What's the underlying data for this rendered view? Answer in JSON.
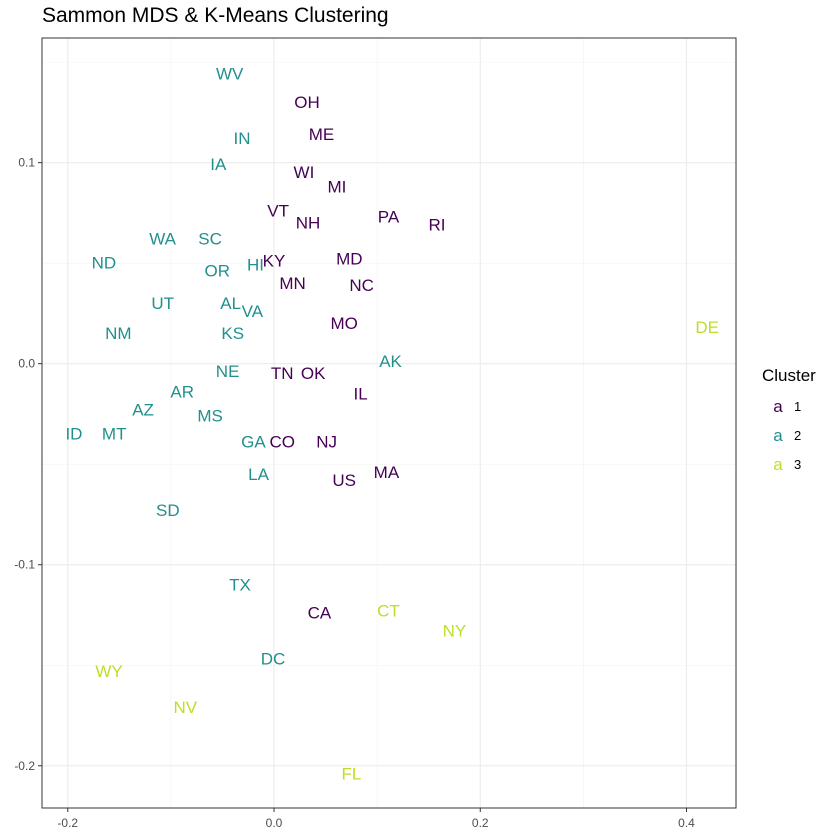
{
  "chart_data": {
    "type": "scatter",
    "title": "Sammon MDS & K-Means Clustering",
    "xlabel": "",
    "ylabel": "",
    "xlim": [
      -0.225,
      0.448
    ],
    "ylim": [
      -0.221,
      0.162
    ],
    "x_ticks": [
      -0.2,
      0.0,
      0.2,
      0.4
    ],
    "x_tick_labels": [
      "-0.2",
      "0.0",
      "0.2",
      "0.4"
    ],
    "y_ticks": [
      -0.2,
      -0.1,
      0.0,
      0.1
    ],
    "y_tick_labels": [
      "-0.2",
      "-0.1",
      "0.0",
      "0.1"
    ],
    "grid": true,
    "legend": {
      "title": "Cluster",
      "position": "right",
      "key_glyph": "a",
      "entries": [
        {
          "label": "1",
          "color": "#440154"
        },
        {
          "label": "2",
          "color": "#21908C"
        },
        {
          "label": "3",
          "color": "#BBDF27"
        }
      ]
    },
    "points": [
      {
        "label": "WV",
        "x": -0.043,
        "y": 0.144,
        "cluster": "2"
      },
      {
        "label": "OH",
        "x": 0.032,
        "y": 0.13,
        "cluster": "1"
      },
      {
        "label": "ME",
        "x": 0.046,
        "y": 0.114,
        "cluster": "1"
      },
      {
        "label": "IN",
        "x": -0.031,
        "y": 0.112,
        "cluster": "2"
      },
      {
        "label": "IA",
        "x": -0.054,
        "y": 0.099,
        "cluster": "2"
      },
      {
        "label": "WI",
        "x": 0.029,
        "y": 0.095,
        "cluster": "1"
      },
      {
        "label": "MI",
        "x": 0.061,
        "y": 0.088,
        "cluster": "1"
      },
      {
        "label": "VT",
        "x": 0.004,
        "y": 0.076,
        "cluster": "1"
      },
      {
        "label": "NH",
        "x": 0.033,
        "y": 0.07,
        "cluster": "1"
      },
      {
        "label": "PA",
        "x": 0.111,
        "y": 0.073,
        "cluster": "1"
      },
      {
        "label": "RI",
        "x": 0.158,
        "y": 0.069,
        "cluster": "1"
      },
      {
        "label": "WA",
        "x": -0.108,
        "y": 0.062,
        "cluster": "2"
      },
      {
        "label": "SC",
        "x": -0.062,
        "y": 0.062,
        "cluster": "2"
      },
      {
        "label": "ND",
        "x": -0.165,
        "y": 0.05,
        "cluster": "2"
      },
      {
        "label": "OR",
        "x": -0.055,
        "y": 0.046,
        "cluster": "2"
      },
      {
        "label": "HI",
        "x": -0.018,
        "y": 0.049,
        "cluster": "2"
      },
      {
        "label": "KY",
        "x": 0.0,
        "y": 0.051,
        "cluster": "1"
      },
      {
        "label": "MD",
        "x": 0.073,
        "y": 0.052,
        "cluster": "1"
      },
      {
        "label": "MN",
        "x": 0.018,
        "y": 0.04,
        "cluster": "1"
      },
      {
        "label": "NC",
        "x": 0.085,
        "y": 0.039,
        "cluster": "1"
      },
      {
        "label": "UT",
        "x": -0.108,
        "y": 0.03,
        "cluster": "2"
      },
      {
        "label": "AL",
        "x": -0.042,
        "y": 0.03,
        "cluster": "2"
      },
      {
        "label": "VA",
        "x": -0.021,
        "y": 0.026,
        "cluster": "2"
      },
      {
        "label": "MO",
        "x": 0.068,
        "y": 0.02,
        "cluster": "1"
      },
      {
        "label": "DE",
        "x": 0.42,
        "y": 0.018,
        "cluster": "3"
      },
      {
        "label": "NM",
        "x": -0.151,
        "y": 0.015,
        "cluster": "2"
      },
      {
        "label": "KS",
        "x": -0.04,
        "y": 0.015,
        "cluster": "2"
      },
      {
        "label": "AK",
        "x": 0.113,
        "y": 0.001,
        "cluster": "2"
      },
      {
        "label": "NE",
        "x": -0.045,
        "y": -0.004,
        "cluster": "2"
      },
      {
        "label": "TN",
        "x": 0.008,
        "y": -0.005,
        "cluster": "1"
      },
      {
        "label": "OK",
        "x": 0.038,
        "y": -0.005,
        "cluster": "1"
      },
      {
        "label": "AR",
        "x": -0.089,
        "y": -0.014,
        "cluster": "2"
      },
      {
        "label": "IL",
        "x": 0.084,
        "y": -0.015,
        "cluster": "1"
      },
      {
        "label": "AZ",
        "x": -0.127,
        "y": -0.023,
        "cluster": "2"
      },
      {
        "label": "MS",
        "x": -0.062,
        "y": -0.026,
        "cluster": "2"
      },
      {
        "label": "ID",
        "x": -0.194,
        "y": -0.035,
        "cluster": "2"
      },
      {
        "label": "MT",
        "x": -0.155,
        "y": -0.035,
        "cluster": "2"
      },
      {
        "label": "GA",
        "x": -0.02,
        "y": -0.039,
        "cluster": "2"
      },
      {
        "label": "CO",
        "x": 0.008,
        "y": -0.039,
        "cluster": "1"
      },
      {
        "label": "NJ",
        "x": 0.051,
        "y": -0.039,
        "cluster": "1"
      },
      {
        "label": "MA",
        "x": 0.109,
        "y": -0.054,
        "cluster": "1"
      },
      {
        "label": "LA",
        "x": -0.015,
        "y": -0.055,
        "cluster": "2"
      },
      {
        "label": "US",
        "x": 0.068,
        "y": -0.058,
        "cluster": "1"
      },
      {
        "label": "SD",
        "x": -0.103,
        "y": -0.073,
        "cluster": "2"
      },
      {
        "label": "TX",
        "x": -0.033,
        "y": -0.11,
        "cluster": "2"
      },
      {
        "label": "CA",
        "x": 0.044,
        "y": -0.124,
        "cluster": "1"
      },
      {
        "label": "CT",
        "x": 0.111,
        "y": -0.123,
        "cluster": "3"
      },
      {
        "label": "NY",
        "x": 0.175,
        "y": -0.133,
        "cluster": "3"
      },
      {
        "label": "DC",
        "x": -0.001,
        "y": -0.147,
        "cluster": "2"
      },
      {
        "label": "WY",
        "x": -0.16,
        "y": -0.153,
        "cluster": "3"
      },
      {
        "label": "NV",
        "x": -0.086,
        "y": -0.171,
        "cluster": "3"
      },
      {
        "label": "FL",
        "x": 0.075,
        "y": -0.204,
        "cluster": "3"
      }
    ]
  }
}
